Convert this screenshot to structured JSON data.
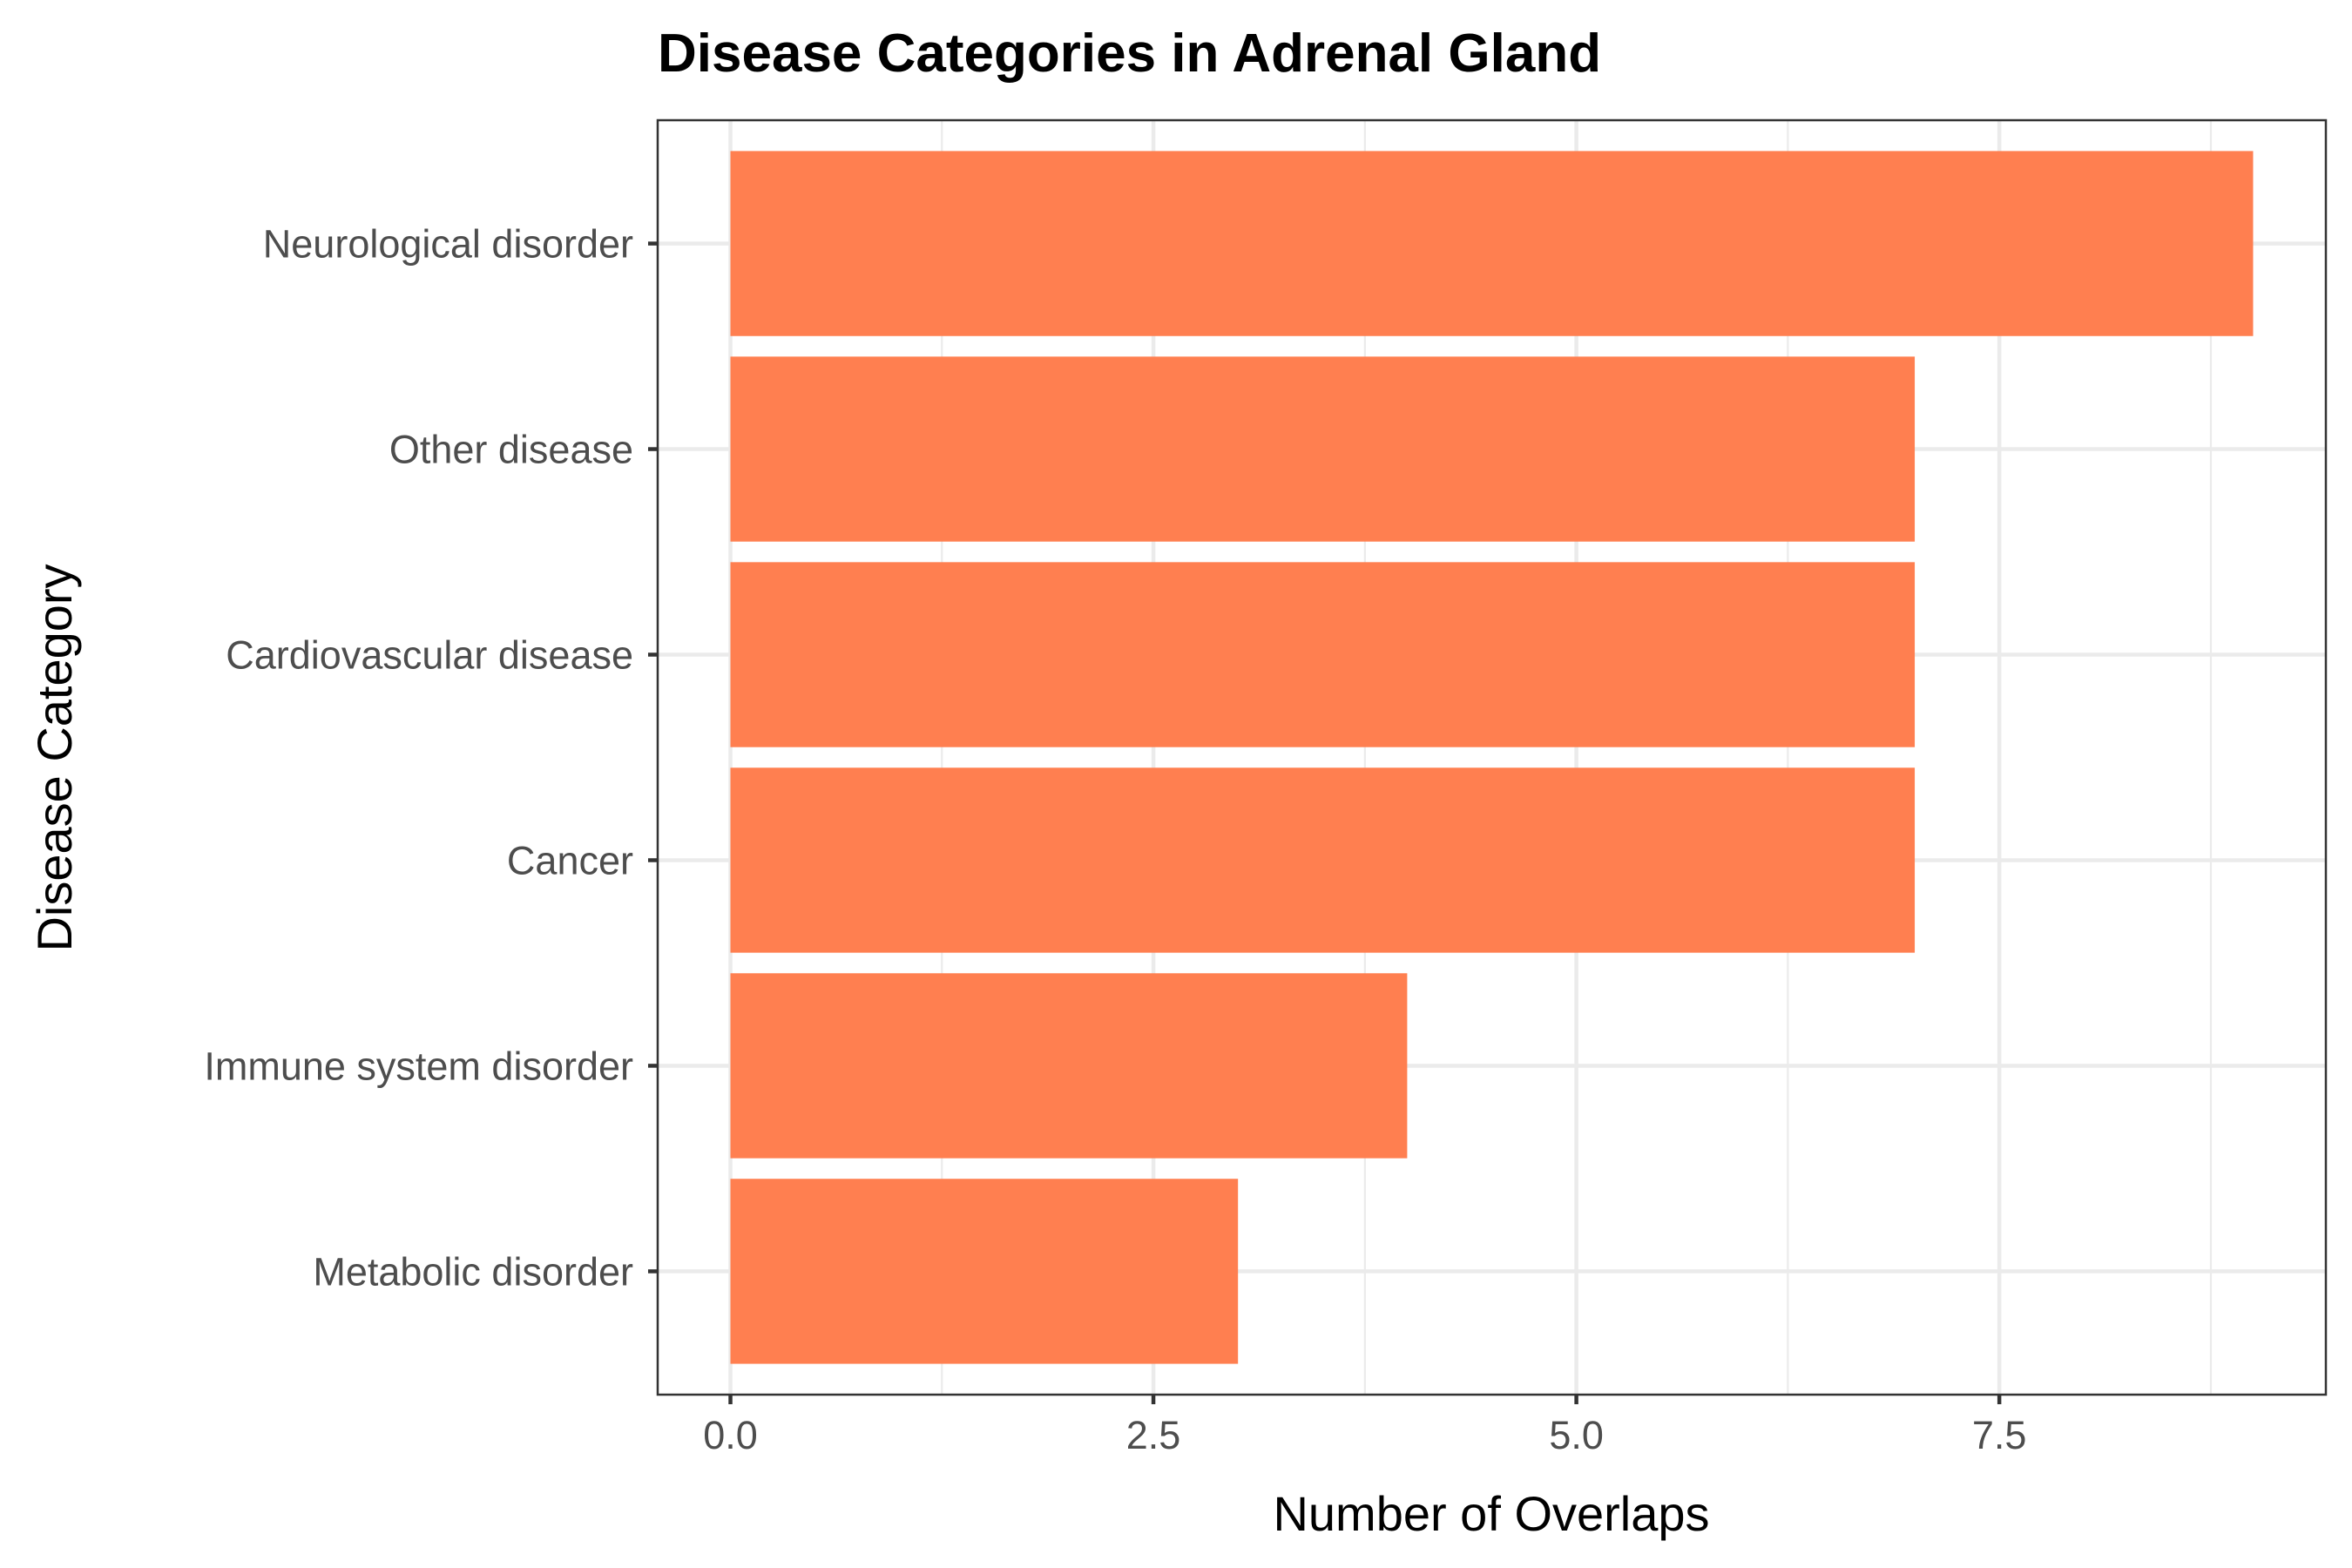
{
  "chart_data": {
    "type": "bar",
    "orientation": "horizontal",
    "title": "Disease Categories in Adrenal Gland",
    "xlabel": "Number of Overlaps",
    "ylabel": "Disease Category",
    "categories": [
      "Neurological disorder",
      "Other disease",
      "Cardiovascular disease",
      "Cancer",
      "Immune system disorder",
      "Metabolic disorder"
    ],
    "values": [
      9,
      7,
      7,
      7,
      4,
      3
    ],
    "xlim": [
      -0.43,
      9.43
    ],
    "x_ticks": [
      0,
      2.5,
      5,
      7.5
    ],
    "x_tick_labels": [
      "0.0",
      "2.5",
      "5.0",
      "7.5"
    ],
    "grid": true,
    "legend": "none",
    "bar_color": "#ff7f50"
  }
}
